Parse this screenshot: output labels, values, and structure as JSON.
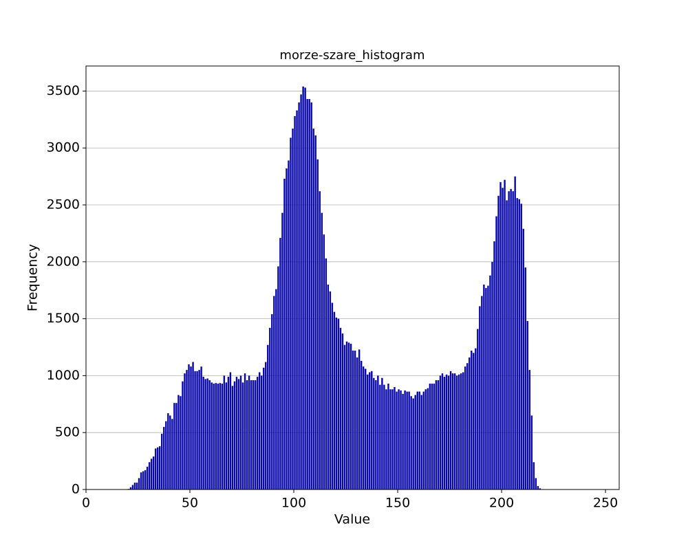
{
  "chart_data": {
    "type": "histogram",
    "title": "morze-szare_histogram",
    "x_label": "Value",
    "y_label": "Frequency",
    "color": "#0707aa",
    "grid": "y",
    "xlim": [
      0,
      256.6
    ],
    "ylim": [
      0,
      3720
    ],
    "xticks": [
      0,
      50,
      100,
      150,
      200,
      250
    ],
    "yticks": [
      0,
      500,
      1000,
      1500,
      2000,
      2500,
      3000,
      3500
    ],
    "bins": [
      0,
      1,
      2,
      3,
      4,
      5,
      6,
      7,
      8,
      9,
      10,
      11,
      12,
      13,
      14,
      15,
      16,
      17,
      18,
      19,
      20,
      21,
      22,
      23,
      24,
      25,
      26,
      27,
      28,
      29,
      30,
      31,
      32,
      33,
      34,
      35,
      36,
      37,
      38,
      39,
      40,
      41,
      42,
      43,
      44,
      45,
      46,
      47,
      48,
      49,
      50,
      51,
      52,
      53,
      54,
      55,
      56,
      57,
      58,
      59,
      60,
      61,
      62,
      63,
      64,
      65,
      66,
      67,
      68,
      69,
      70,
      71,
      72,
      73,
      74,
      75,
      76,
      77,
      78,
      79,
      80,
      81,
      82,
      83,
      84,
      85,
      86,
      87,
      88,
      89,
      90,
      91,
      92,
      93,
      94,
      95,
      96,
      97,
      98,
      99,
      100,
      101,
      102,
      103,
      104,
      105,
      106,
      107,
      108,
      109,
      110,
      111,
      112,
      113,
      114,
      115,
      116,
      117,
      118,
      119,
      120,
      121,
      122,
      123,
      124,
      125,
      126,
      127,
      128,
      129,
      130,
      131,
      132,
      133,
      134,
      135,
      136,
      137,
      138,
      139,
      140,
      141,
      142,
      143,
      144,
      145,
      146,
      147,
      148,
      149,
      150,
      151,
      152,
      153,
      154,
      155,
      156,
      157,
      158,
      159,
      160,
      161,
      162,
      163,
      164,
      165,
      166,
      167,
      168,
      169,
      170,
      171,
      172,
      173,
      174,
      175,
      176,
      177,
      178,
      179,
      180,
      181,
      182,
      183,
      184,
      185,
      186,
      187,
      188,
      189,
      190,
      191,
      192,
      193,
      194,
      195,
      196,
      197,
      198,
      199,
      200,
      201,
      202,
      203,
      204,
      205,
      206,
      207,
      208,
      209,
      210,
      211,
      212,
      213,
      214,
      215,
      216,
      217,
      218,
      219,
      220,
      221,
      222,
      223,
      224,
      225,
      226,
      227,
      228,
      229,
      230,
      231,
      232,
      233,
      234,
      235,
      236,
      237,
      238,
      239,
      240,
      241,
      242,
      243,
      244,
      245,
      246,
      247,
      248,
      249,
      250,
      251,
      252,
      253,
      254,
      255,
      256
    ],
    "counts": [
      0,
      0,
      0,
      0,
      0,
      0,
      0,
      0,
      0,
      0,
      0,
      0,
      0,
      0,
      0,
      0,
      0,
      0,
      0,
      0,
      5,
      20,
      40,
      60,
      60,
      100,
      150,
      160,
      170,
      200,
      240,
      270,
      290,
      360,
      370,
      380,
      490,
      550,
      600,
      670,
      650,
      620,
      760,
      760,
      830,
      820,
      950,
      1020,
      1050,
      1100,
      1080,
      1120,
      1040,
      1040,
      1050,
      1080,
      990,
      970,
      975,
      960,
      940,
      930,
      935,
      930,
      935,
      930,
      1000,
      940,
      990,
      1030,
      910,
      950,
      990,
      970,
      1000,
      940,
      1020,
      960,
      1000,
      960,
      960,
      960,
      990,
      1030,
      1000,
      1070,
      1120,
      1270,
      1420,
      1540,
      1700,
      1760,
      1960,
      2210,
      2430,
      2730,
      2820,
      2890,
      3090,
      3170,
      3280,
      3330,
      3400,
      3470,
      3540,
      3530,
      3430,
      3430,
      3400,
      3170,
      3110,
      2900,
      2620,
      2430,
      2240,
      2030,
      1800,
      1740,
      1640,
      1560,
      1510,
      1500,
      1420,
      1370,
      1270,
      1300,
      1290,
      1280,
      1220,
      1220,
      1160,
      1230,
      1130,
      1080,
      1060,
      1010,
      1030,
      1040,
      980,
      960,
      1000,
      920,
      980,
      920,
      880,
      930,
      880,
      880,
      900,
      860,
      880,
      870,
      840,
      870,
      860,
      860,
      820,
      800,
      830,
      860,
      860,
      830,
      860,
      880,
      890,
      930,
      930,
      930,
      960,
      960,
      1000,
      1020,
      990,
      1010,
      1000,
      1040,
      1020,
      1020,
      1000,
      1010,
      1020,
      1030,
      1080,
      1110,
      1160,
      1220,
      1200,
      1240,
      1410,
      1610,
      1700,
      1800,
      1770,
      1790,
      1880,
      2000,
      2180,
      2400,
      2580,
      2700,
      2650,
      2720,
      2540,
      2620,
      2640,
      2620,
      2750,
      2560,
      2550,
      2510,
      2290,
      1950,
      1480,
      1050,
      650,
      240,
      100,
      30,
      10,
      0,
      0,
      0,
      0,
      0,
      0,
      0,
      0,
      0,
      0,
      0,
      0,
      0,
      0,
      0,
      0,
      0,
      0,
      0,
      0,
      0,
      0,
      0,
      0,
      0,
      0,
      0,
      0,
      0,
      0,
      0,
      0,
      0,
      0,
      0,
      0,
      0
    ]
  }
}
